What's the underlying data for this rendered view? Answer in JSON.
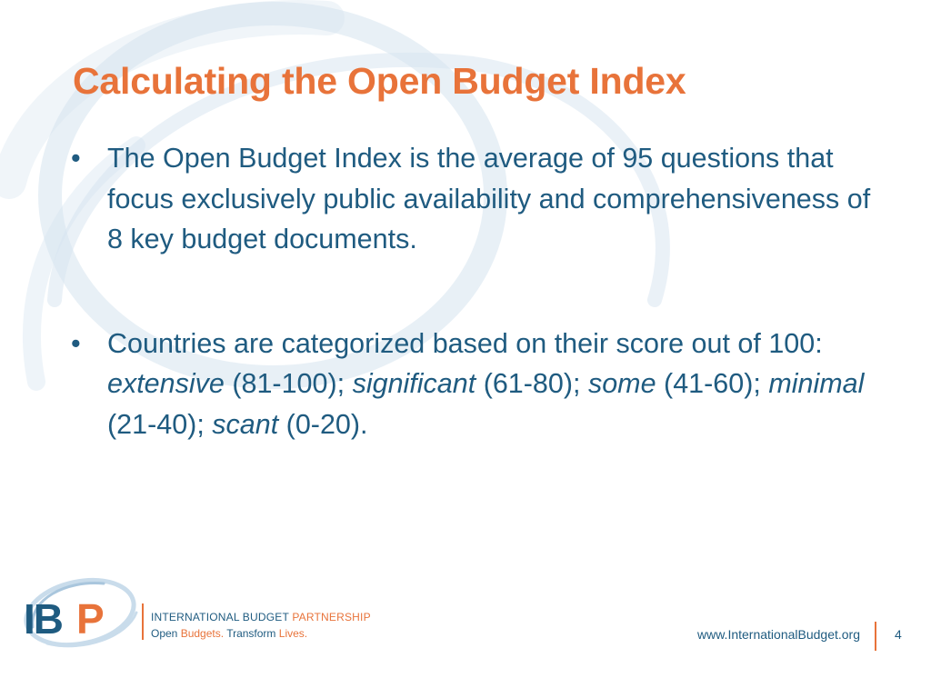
{
  "colors": {
    "title": "#E8733A",
    "body_text": "#1F5B80",
    "accent_orange": "#E8733A",
    "swirl": "#D5E3EF"
  },
  "slide": {
    "title": "Calculating the Open Budget Index",
    "bullets": [
      {
        "text": "The Open Budget Index is the average of 95 questions that focus exclusively public availability and comprehensiveness of 8 key budget documents."
      },
      {
        "lead": "Countries are categorized based on their score out of 100: ",
        "categories": [
          {
            "name": "extensive",
            "range": " (81-100); "
          },
          {
            "name": "significant",
            "range": " (61-80); "
          },
          {
            "name": "some",
            "range": " (41-60); "
          },
          {
            "name": "minimal",
            "range": " (21-40); "
          },
          {
            "name": "scant",
            "range": " (0-20)."
          }
        ]
      }
    ]
  },
  "logo": {
    "letters_ib": "IB",
    "letter_p": "P",
    "org_name_part1": "INTERNATIONAL BUDGET ",
    "org_name_part2": "PARTNERSHIP",
    "tagline_part1": "Open ",
    "tagline_part2": "Budgets.",
    "tagline_part3": " Transform ",
    "tagline_part4": "Lives.",
    "icon": "ibp-ring-logo-icon"
  },
  "footer": {
    "url": "www.InternationalBudget.org",
    "page_number": "4"
  }
}
